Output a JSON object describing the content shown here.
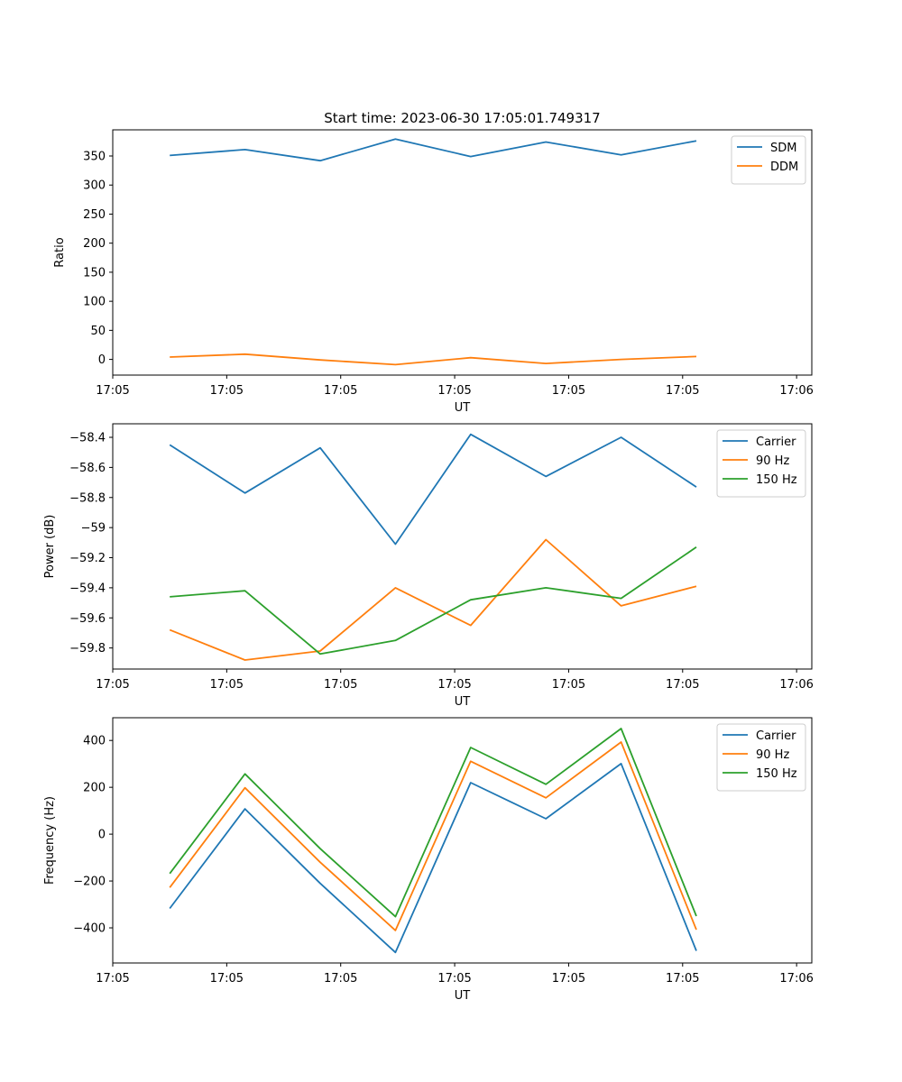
{
  "figure": {
    "title": "Start time: 2023-06-30 17:05:01.749317"
  },
  "chart_data": [
    {
      "type": "line",
      "xlabel": "UT",
      "ylabel": "Ratio",
      "xlim": [
        0,
        9.2
      ],
      "ylim": [
        -27,
        395
      ],
      "x": [
        0.75,
        1.74,
        2.73,
        3.72,
        4.71,
        5.7,
        6.69,
        7.68
      ],
      "xticks": {
        "positions": [
          0,
          1.5,
          3.0,
          4.5,
          6.0,
          7.5,
          9.0
        ],
        "labels": [
          "17:05",
          "17:05",
          "17:05",
          "17:05",
          "17:05",
          "17:05",
          "17:06"
        ]
      },
      "yticks": [
        0,
        50,
        100,
        150,
        200,
        250,
        300,
        350
      ],
      "legend": "upper right",
      "series": [
        {
          "name": "SDM",
          "color": "#1f77b4",
          "values": [
            351,
            361,
            342,
            379,
            349,
            374,
            352,
            376
          ]
        },
        {
          "name": "DDM",
          "color": "#ff7f0e",
          "values": [
            4,
            9,
            -1,
            -9,
            3,
            -7,
            0,
            5
          ]
        }
      ]
    },
    {
      "type": "line",
      "xlabel": "UT",
      "ylabel": "Power (dB)",
      "xlim": [
        0,
        9.2
      ],
      "ylim": [
        -59.94,
        -58.31
      ],
      "x": [
        0.75,
        1.74,
        2.73,
        3.72,
        4.71,
        5.7,
        6.69,
        7.68
      ],
      "xticks": {
        "positions": [
          0,
          1.5,
          3.0,
          4.5,
          6.0,
          7.5,
          9.0
        ],
        "labels": [
          "17:05",
          "17:05",
          "17:05",
          "17:05",
          "17:05",
          "17:05",
          "17:06"
        ]
      },
      "yticks": [
        -59.8,
        -59.6,
        -59.4,
        -59.2,
        -59.0,
        -58.8,
        -58.6,
        -58.4
      ],
      "legend": "upper right",
      "series": [
        {
          "name": "Carrier",
          "color": "#1f77b4",
          "values": [
            -58.45,
            -58.77,
            -58.47,
            -59.11,
            -58.38,
            -58.66,
            -58.4,
            -58.73
          ]
        },
        {
          "name": "90 Hz",
          "color": "#ff7f0e",
          "values": [
            -59.68,
            -59.88,
            -59.82,
            -59.4,
            -59.65,
            -59.08,
            -59.52,
            -59.39
          ]
        },
        {
          "name": "150 Hz",
          "color": "#2ca02c",
          "values": [
            -59.46,
            -59.42,
            -59.84,
            -59.75,
            -59.48,
            -59.4,
            -59.47,
            -59.13
          ]
        }
      ]
    },
    {
      "type": "line",
      "xlabel": "UT",
      "ylabel": "Frequency (Hz)",
      "xlim": [
        0,
        9.2
      ],
      "ylim": [
        -550,
        497
      ],
      "x": [
        0.75,
        1.74,
        2.73,
        3.72,
        4.71,
        5.7,
        6.69,
        7.68
      ],
      "xticks": {
        "positions": [
          0,
          1.5,
          3.0,
          4.5,
          6.0,
          7.5,
          9.0
        ],
        "labels": [
          "17:05",
          "17:05",
          "17:05",
          "17:05",
          "17:05",
          "17:05",
          "17:06"
        ]
      },
      "yticks": [
        -400,
        -200,
        0,
        200,
        400
      ],
      "legend": "upper right",
      "series": [
        {
          "name": "Carrier",
          "color": "#1f77b4",
          "values": [
            -317,
            108,
            -210,
            -505,
            220,
            66,
            301,
            -498
          ]
        },
        {
          "name": "90 Hz",
          "color": "#ff7f0e",
          "values": [
            -228,
            198,
            -120,
            -411,
            311,
            155,
            393,
            -408
          ]
        },
        {
          "name": "150 Hz",
          "color": "#2ca02c",
          "values": [
            -168,
            257,
            -62,
            -352,
            370,
            213,
            451,
            -350
          ]
        }
      ]
    }
  ]
}
